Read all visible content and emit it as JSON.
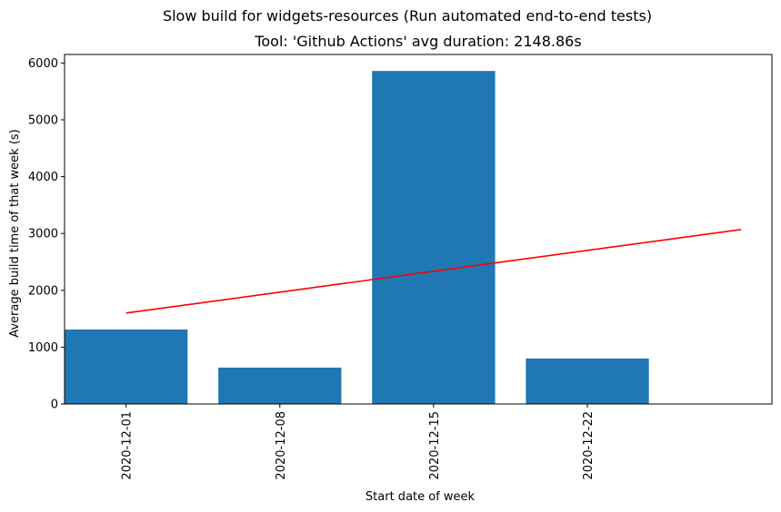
{
  "chart_data": {
    "type": "bar",
    "suptitle": "Slow build for widgets-resources (Run automated end-to-end tests)",
    "title": "Tool: 'Github Actions' avg duration: 2148.86s",
    "xlabel": "Start date of week",
    "ylabel": "Average build time of that week (s)",
    "categories": [
      "2020-12-01",
      "2020-12-08",
      "2020-12-15",
      "2020-12-22"
    ],
    "values": [
      1310,
      640,
      5860,
      800
    ],
    "bar_color": "#1f77b4",
    "trend_line": {
      "color": "#ff0000",
      "x_start": 0,
      "y_start": 1600,
      "x_end": 4,
      "y_end": 3070
    },
    "xlim": [
      -0.4,
      4.2
    ],
    "ylim": [
      0,
      6150
    ],
    "yticks": [
      0,
      1000,
      2000,
      3000,
      4000,
      5000,
      6000
    ],
    "grid": false,
    "legend": "none"
  }
}
